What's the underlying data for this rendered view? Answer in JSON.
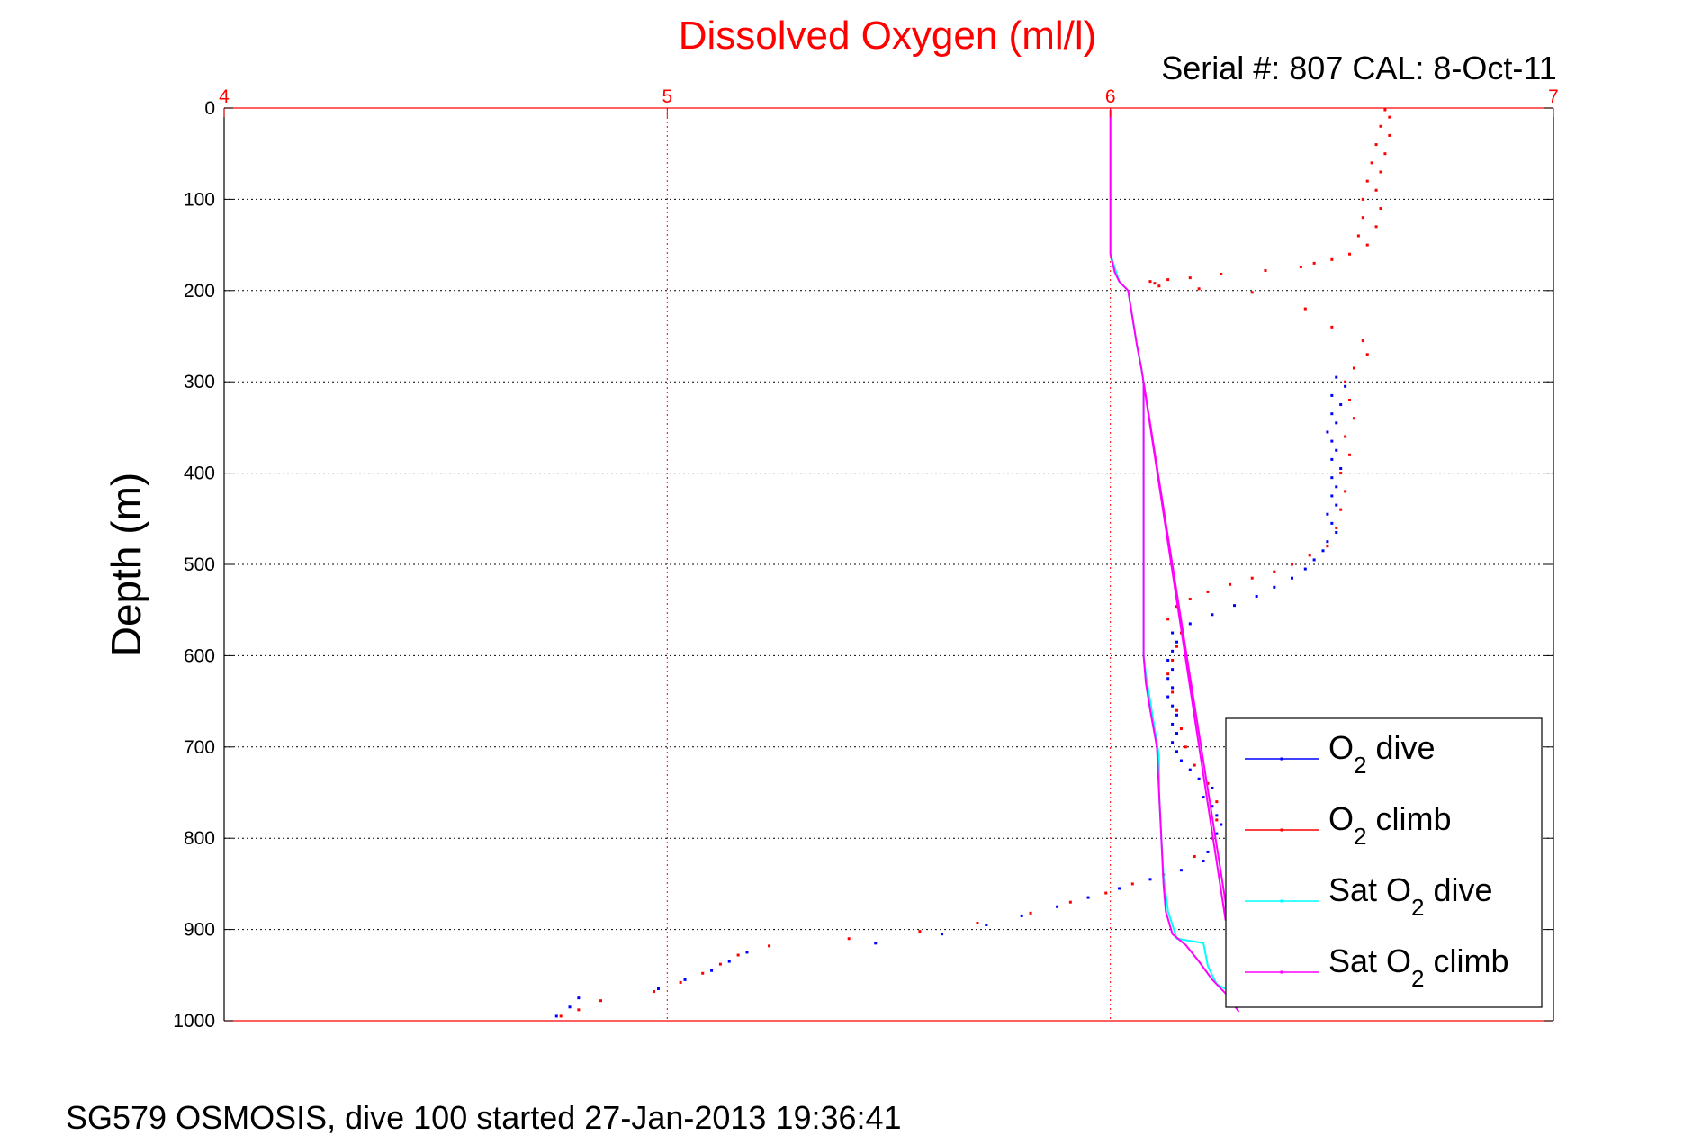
{
  "chart_data": {
    "type": "scatter",
    "title": "Dissolved Oxygen (ml/l)",
    "subtitle": "Serial #: 807  CAL: 8-Oct-11",
    "ylabel": "Depth (m)",
    "xlabel": "",
    "footer": "SG579 OSMOSIS, dive 100 started 27-Jan-2013 19:36:41",
    "xlim": [
      4,
      7
    ],
    "ylim": [
      0,
      1000
    ],
    "y_reversed": true,
    "x_axis_position": "top",
    "x_ticks": [
      "4",
      "5",
      "6",
      "7"
    ],
    "y_ticks": [
      "0",
      "100",
      "200",
      "300",
      "400",
      "500",
      "600",
      "700",
      "800",
      "900",
      "1000"
    ],
    "grid": true,
    "legend_position": "bottom-right",
    "colors": {
      "axis_x": "#ff0000",
      "axis_y": "#000000",
      "title": "#ff0000"
    },
    "series": [
      {
        "name": "O2 dive",
        "legend_main": "O",
        "legend_sub": "2",
        "legend_rest": " dive",
        "color": "#0000ff",
        "style": "dots",
        "points": [
          [
            6.51,
            295
          ],
          [
            6.53,
            305
          ],
          [
            6.5,
            315
          ],
          [
            6.52,
            325
          ],
          [
            6.5,
            335
          ],
          [
            6.51,
            345
          ],
          [
            6.49,
            355
          ],
          [
            6.5,
            365
          ],
          [
            6.51,
            375
          ],
          [
            6.5,
            385
          ],
          [
            6.52,
            395
          ],
          [
            6.5,
            405
          ],
          [
            6.51,
            415
          ],
          [
            6.5,
            425
          ],
          [
            6.51,
            435
          ],
          [
            6.49,
            445
          ],
          [
            6.5,
            455
          ],
          [
            6.51,
            465
          ],
          [
            6.49,
            475
          ],
          [
            6.48,
            485
          ],
          [
            6.46,
            495
          ],
          [
            6.44,
            505
          ],
          [
            6.41,
            515
          ],
          [
            6.37,
            525
          ],
          [
            6.33,
            535
          ],
          [
            6.28,
            545
          ],
          [
            6.23,
            555
          ],
          [
            6.18,
            565
          ],
          [
            6.14,
            575
          ],
          [
            6.15,
            585
          ],
          [
            6.14,
            595
          ],
          [
            6.13,
            605
          ],
          [
            6.14,
            615
          ],
          [
            6.13,
            625
          ],
          [
            6.14,
            635
          ],
          [
            6.13,
            645
          ],
          [
            6.14,
            655
          ],
          [
            6.15,
            665
          ],
          [
            6.14,
            675
          ],
          [
            6.15,
            685
          ],
          [
            6.14,
            695
          ],
          [
            6.15,
            705
          ],
          [
            6.16,
            715
          ],
          [
            6.18,
            725
          ],
          [
            6.2,
            735
          ],
          [
            6.23,
            745
          ],
          [
            6.21,
            755
          ],
          [
            6.23,
            765
          ],
          [
            6.24,
            775
          ],
          [
            6.25,
            785
          ],
          [
            6.24,
            795
          ],
          [
            6.22,
            815
          ],
          [
            6.21,
            825
          ],
          [
            6.16,
            835
          ],
          [
            6.09,
            845
          ],
          [
            6.02,
            855
          ],
          [
            5.95,
            865
          ],
          [
            5.88,
            875
          ],
          [
            5.8,
            885
          ],
          [
            5.72,
            895
          ],
          [
            5.62,
            905
          ],
          [
            5.47,
            915
          ],
          [
            5.18,
            925
          ],
          [
            5.14,
            935
          ],
          [
            5.1,
            945
          ],
          [
            5.04,
            955
          ],
          [
            4.98,
            965
          ],
          [
            4.8,
            975
          ],
          [
            4.78,
            985
          ],
          [
            4.75,
            995
          ]
        ]
      },
      {
        "name": "O2 climb",
        "legend_main": "O",
        "legend_sub": "2",
        "legend_rest": " climb",
        "color": "#ff0000",
        "style": "dots",
        "points": [
          [
            6.62,
            2
          ],
          [
            6.63,
            10
          ],
          [
            6.61,
            20
          ],
          [
            6.63,
            30
          ],
          [
            6.6,
            40
          ],
          [
            6.62,
            50
          ],
          [
            6.59,
            60
          ],
          [
            6.61,
            70
          ],
          [
            6.58,
            80
          ],
          [
            6.6,
            90
          ],
          [
            6.57,
            100
          ],
          [
            6.61,
            110
          ],
          [
            6.57,
            120
          ],
          [
            6.6,
            130
          ],
          [
            6.56,
            140
          ],
          [
            6.58,
            150
          ],
          [
            6.54,
            160
          ],
          [
            6.5,
            166
          ],
          [
            6.46,
            170
          ],
          [
            6.43,
            174
          ],
          [
            6.35,
            178
          ],
          [
            6.25,
            182
          ],
          [
            6.18,
            186
          ],
          [
            6.13,
            188
          ],
          [
            6.09,
            190
          ],
          [
            6.1,
            192
          ],
          [
            6.11,
            195
          ],
          [
            6.2,
            198
          ],
          [
            6.32,
            202
          ],
          [
            6.44,
            220
          ],
          [
            6.5,
            240
          ],
          [
            6.57,
            255
          ],
          [
            6.58,
            270
          ],
          [
            6.55,
            285
          ],
          [
            6.53,
            300
          ],
          [
            6.54,
            320
          ],
          [
            6.55,
            340
          ],
          [
            6.53,
            360
          ],
          [
            6.54,
            380
          ],
          [
            6.52,
            400
          ],
          [
            6.53,
            420
          ],
          [
            6.52,
            440
          ],
          [
            6.51,
            460
          ],
          [
            6.49,
            480
          ],
          [
            6.45,
            490
          ],
          [
            6.41,
            500
          ],
          [
            6.37,
            508
          ],
          [
            6.32,
            515
          ],
          [
            6.27,
            522
          ],
          [
            6.22,
            530
          ],
          [
            6.18,
            538
          ],
          [
            6.15,
            546
          ],
          [
            6.13,
            560
          ],
          [
            6.16,
            575
          ],
          [
            6.15,
            590
          ],
          [
            6.14,
            605
          ],
          [
            6.13,
            620
          ],
          [
            6.14,
            640
          ],
          [
            6.15,
            660
          ],
          [
            6.16,
            680
          ],
          [
            6.17,
            700
          ],
          [
            6.19,
            720
          ],
          [
            6.22,
            740
          ],
          [
            6.24,
            760
          ],
          [
            6.24,
            780
          ],
          [
            6.23,
            800
          ],
          [
            6.19,
            820
          ],
          [
            6.12,
            840
          ],
          [
            6.05,
            850
          ],
          [
            5.99,
            860
          ],
          [
            5.91,
            870
          ],
          [
            5.82,
            882
          ],
          [
            5.7,
            893
          ],
          [
            5.57,
            902
          ],
          [
            5.41,
            910
          ],
          [
            5.23,
            918
          ],
          [
            5.16,
            928
          ],
          [
            5.12,
            938
          ],
          [
            5.08,
            948
          ],
          [
            5.03,
            958
          ],
          [
            4.97,
            968
          ],
          [
            4.85,
            978
          ],
          [
            4.8,
            988
          ],
          [
            4.76,
            995
          ]
        ]
      },
      {
        "name": "Sat O2 dive",
        "legend_main": "Sat O",
        "legend_sub": "2",
        "legend_rest": " dive",
        "color": "#00ffff",
        "style": "line",
        "points": [
          [
            6.0,
            2
          ],
          [
            6.0,
            100
          ],
          [
            6.0,
            160
          ],
          [
            6.01,
            175
          ],
          [
            6.02,
            190
          ],
          [
            6.04,
            200
          ],
          [
            6.05,
            230
          ],
          [
            6.06,
            260
          ],
          [
            6.07,
            285
          ],
          [
            6.075,
            300
          ],
          [
            6.075,
            450
          ],
          [
            6.075,
            550
          ],
          [
            6.075,
            600
          ],
          [
            6.08,
            620
          ],
          [
            6.09,
            650
          ],
          [
            6.1,
            680
          ],
          [
            6.11,
            710
          ],
          [
            6.11,
            750
          ],
          [
            6.115,
            800
          ],
          [
            6.12,
            840
          ],
          [
            6.13,
            880
          ],
          [
            6.15,
            910
          ],
          [
            6.21,
            915
          ],
          [
            6.22,
            940
          ],
          [
            6.24,
            960
          ],
          [
            6.26,
            965
          ]
        ]
      },
      {
        "name": "Sat O2 climb",
        "legend_main": "Sat O",
        "legend_sub": "2",
        "legend_rest": " climb",
        "color": "#ff00ff",
        "style": "line",
        "points": [
          [
            6.29,
            990
          ],
          [
            6.26,
            970
          ],
          [
            6.23,
            955
          ],
          [
            6.2,
            935
          ],
          [
            6.17,
            917
          ],
          [
            6.14,
            905
          ],
          [
            6.125,
            880
          ],
          [
            6.12,
            850
          ],
          [
            6.115,
            800
          ],
          [
            6.11,
            750
          ],
          [
            6.105,
            700
          ],
          [
            6.09,
            660
          ],
          [
            6.08,
            630
          ],
          [
            6.075,
            600
          ],
          [
            6.075,
            550
          ],
          [
            6.075,
            450
          ],
          [
            6.075,
            300
          ],
          [
            6.26,
            870
          ],
          [
            6.26,
            890
          ],
          [
            6.07,
            285
          ],
          [
            6.06,
            260
          ],
          [
            6.05,
            230
          ],
          [
            6.04,
            200
          ],
          [
            6.02,
            190
          ],
          [
            6.01,
            180
          ],
          [
            6.0,
            160
          ],
          [
            6.0,
            100
          ],
          [
            6.0,
            2
          ]
        ]
      }
    ]
  }
}
